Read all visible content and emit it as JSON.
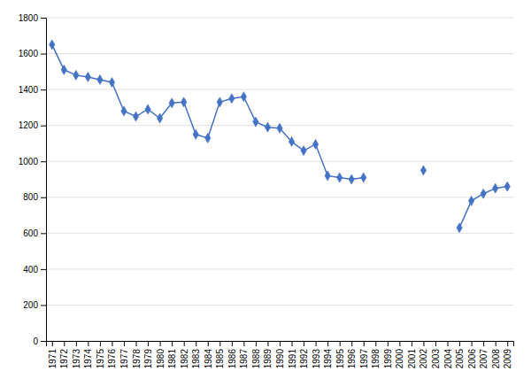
{
  "chart_data": {
    "type": "line",
    "x": [
      1971,
      1972,
      1973,
      1974,
      1975,
      1976,
      1977,
      1978,
      1979,
      1980,
      1981,
      1982,
      1983,
      1984,
      1985,
      1986,
      1987,
      1988,
      1989,
      1990,
      1991,
      1992,
      1993,
      1994,
      1995,
      1996,
      1997,
      1998,
      1999,
      2000,
      2001,
      2002,
      2003,
      2004,
      2005,
      2006,
      2007,
      2008,
      2009
    ],
    "values": [
      1650,
      1510,
      1480,
      1470,
      1455,
      1440,
      1280,
      1250,
      1290,
      1240,
      1325,
      1330,
      1150,
      1130,
      1330,
      1350,
      1360,
      1220,
      1190,
      1185,
      1110,
      1060,
      1095,
      920,
      910,
      900,
      910,
      null,
      null,
      null,
      null,
      950,
      null,
      null,
      630,
      780,
      820,
      850,
      860
    ],
    "color": "#4472C4",
    "marker": "diamond",
    "xlim": [
      1970.5,
      2009.5
    ],
    "xticks": [
      1971,
      1972,
      1973,
      1974,
      1975,
      1976,
      1977,
      1978,
      1979,
      1980,
      1981,
      1982,
      1983,
      1984,
      1985,
      1986,
      1987,
      1988,
      1989,
      1990,
      1991,
      1992,
      1993,
      1994,
      1995,
      1996,
      1997,
      1998,
      1999,
      2000,
      2001,
      2002,
      2003,
      2004,
      2005,
      2006,
      2007,
      2008,
      2009
    ],
    "ylim": [
      0,
      1800
    ],
    "yticks": [
      0,
      200,
      400,
      600,
      800,
      1000,
      1200,
      1400,
      1600,
      1800
    ],
    "grid": true
  }
}
